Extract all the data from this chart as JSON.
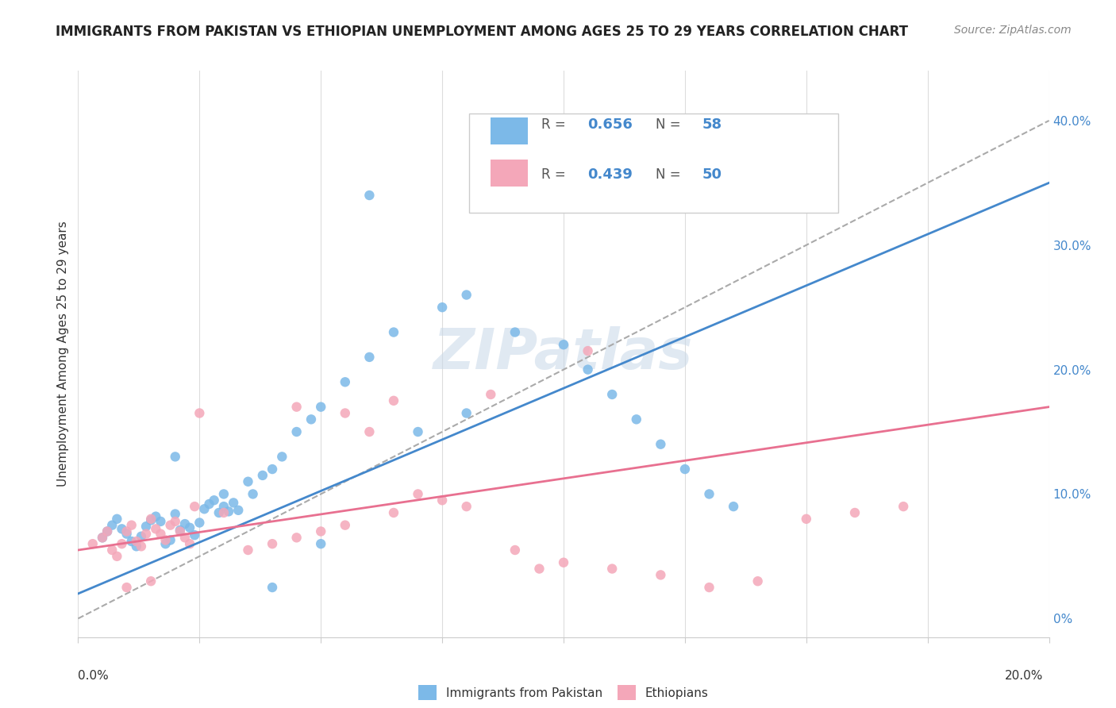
{
  "title": "IMMIGRANTS FROM PAKISTAN VS ETHIOPIAN UNEMPLOYMENT AMONG AGES 25 TO 29 YEARS CORRELATION CHART",
  "source": "Source: ZipAtlas.com",
  "ylabel": "Unemployment Among Ages 25 to 29 years",
  "right_ytick_vals": [
    0.0,
    0.1,
    0.2,
    0.3,
    0.4
  ],
  "right_ytick_labels": [
    "0%",
    "10.0%",
    "20.0%",
    "30.0%",
    "40.0%"
  ],
  "xlim": [
    0.0,
    0.2
  ],
  "ylim": [
    -0.015,
    0.44
  ],
  "pakistan_R": "0.656",
  "pakistan_N": "58",
  "ethiopian_R": "0.439",
  "ethiopian_N": "50",
  "pakistan_color": "#7cb9e8",
  "ethiopian_color": "#f4a7b9",
  "pakistan_line_color": "#4488cc",
  "ethiopian_line_color": "#e87090",
  "diagonal_color": "#aaaaaa",
  "legend_label_pakistan": "Immigrants from Pakistan",
  "legend_label_ethiopian": "Ethiopians",
  "watermark": "ZIPatlas",
  "pakistan_scatter_x": [
    0.005,
    0.006,
    0.007,
    0.008,
    0.009,
    0.01,
    0.011,
    0.012,
    0.013,
    0.014,
    0.015,
    0.016,
    0.017,
    0.018,
    0.019,
    0.02,
    0.021,
    0.022,
    0.023,
    0.024,
    0.025,
    0.026,
    0.027,
    0.028,
    0.029,
    0.03,
    0.031,
    0.032,
    0.033,
    0.035,
    0.036,
    0.038,
    0.04,
    0.042,
    0.045,
    0.048,
    0.05,
    0.055,
    0.06,
    0.065,
    0.07,
    0.075,
    0.08,
    0.09,
    0.1,
    0.105,
    0.11,
    0.115,
    0.12,
    0.125,
    0.13,
    0.135,
    0.04,
    0.06,
    0.08,
    0.02,
    0.03,
    0.05
  ],
  "pakistan_scatter_y": [
    0.065,
    0.07,
    0.075,
    0.08,
    0.072,
    0.068,
    0.062,
    0.058,
    0.066,
    0.074,
    0.079,
    0.082,
    0.078,
    0.06,
    0.063,
    0.084,
    0.071,
    0.076,
    0.073,
    0.067,
    0.077,
    0.088,
    0.092,
    0.095,
    0.085,
    0.09,
    0.086,
    0.093,
    0.087,
    0.11,
    0.1,
    0.115,
    0.12,
    0.13,
    0.15,
    0.16,
    0.17,
    0.19,
    0.21,
    0.23,
    0.15,
    0.25,
    0.26,
    0.23,
    0.22,
    0.2,
    0.18,
    0.16,
    0.14,
    0.12,
    0.1,
    0.09,
    0.025,
    0.34,
    0.165,
    0.13,
    0.1,
    0.06
  ],
  "ethiopian_scatter_x": [
    0.003,
    0.005,
    0.006,
    0.007,
    0.008,
    0.009,
    0.01,
    0.011,
    0.012,
    0.013,
    0.014,
    0.015,
    0.016,
    0.017,
    0.018,
    0.019,
    0.02,
    0.021,
    0.022,
    0.023,
    0.024,
    0.03,
    0.035,
    0.04,
    0.045,
    0.05,
    0.055,
    0.06,
    0.065,
    0.07,
    0.08,
    0.09,
    0.1,
    0.11,
    0.12,
    0.13,
    0.14,
    0.15,
    0.16,
    0.17,
    0.075,
    0.055,
    0.045,
    0.025,
    0.015,
    0.01,
    0.065,
    0.085,
    0.095,
    0.105
  ],
  "ethiopian_scatter_y": [
    0.06,
    0.065,
    0.07,
    0.055,
    0.05,
    0.06,
    0.07,
    0.075,
    0.062,
    0.058,
    0.068,
    0.08,
    0.072,
    0.068,
    0.063,
    0.075,
    0.078,
    0.07,
    0.065,
    0.06,
    0.09,
    0.085,
    0.055,
    0.06,
    0.065,
    0.07,
    0.075,
    0.15,
    0.085,
    0.1,
    0.09,
    0.055,
    0.045,
    0.04,
    0.035,
    0.025,
    0.03,
    0.08,
    0.085,
    0.09,
    0.095,
    0.165,
    0.17,
    0.165,
    0.03,
    0.025,
    0.175,
    0.18,
    0.04,
    0.215
  ],
  "pakistan_line_x": [
    0.0,
    0.2
  ],
  "pakistan_line_y": [
    0.02,
    0.35
  ],
  "ethiopian_line_x": [
    0.0,
    0.2
  ],
  "ethiopian_line_y": [
    0.055,
    0.17
  ],
  "diagonal_line_x": [
    0.0,
    0.2
  ],
  "diagonal_line_y": [
    0.0,
    0.4
  ]
}
